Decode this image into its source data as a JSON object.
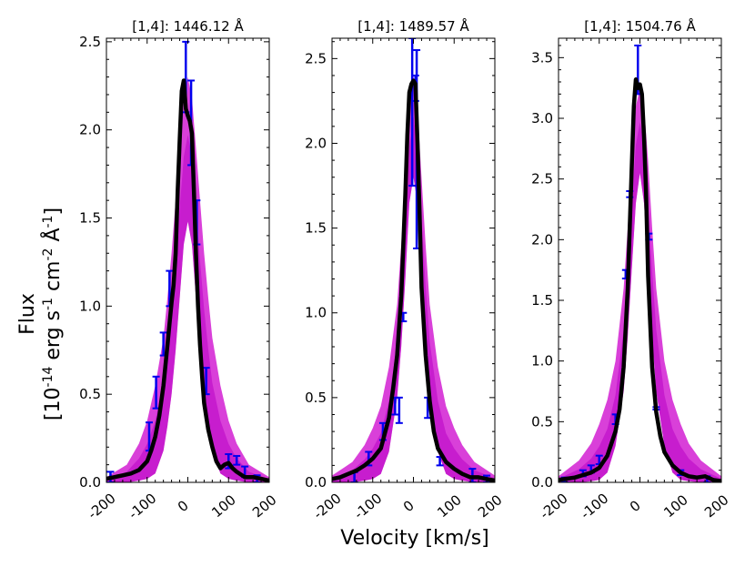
{
  "figure": {
    "xlabel": "Velocity [km/s]",
    "ylabel_line1": "Flux",
    "ylabel_line2_parts": [
      "[10",
      "-14",
      " erg s",
      "-1",
      " cm",
      "-2",
      " Å",
      "-1",
      "]"
    ]
  },
  "colors": {
    "model_band": "#cc00cc",
    "data_line": "#000000",
    "error_bars": "#0000ee"
  },
  "chart_data": [
    {
      "type": "line",
      "title": "[1,4]: 1446.12 Å",
      "xlabel": "Velocity [km/s]",
      "ylabel": "Flux [10^-14 erg s^-1 cm^-2 Å^-1]",
      "xlim": [
        -200,
        200
      ],
      "ylim": [
        0,
        2.52
      ],
      "xticks": [
        -200,
        -100,
        0,
        100,
        200
      ],
      "yticks": [
        0.0,
        0.5,
        1.0,
        1.5,
        2.0,
        2.5
      ],
      "ytick_labels": [
        "0.0",
        "0.5",
        "1.0",
        "1.5",
        "2.0",
        "2.5"
      ],
      "series": [
        {
          "name": "observed",
          "x": [
            -200,
            -180,
            -160,
            -140,
            -120,
            -100,
            -90,
            -80,
            -70,
            -60,
            -50,
            -40,
            -35,
            -30,
            -25,
            -20,
            -15,
            -10,
            -5,
            0,
            5,
            10,
            15,
            20,
            25,
            30,
            35,
            40,
            50,
            60,
            70,
            80,
            90,
            100,
            110,
            120,
            140,
            160,
            180,
            200
          ],
          "y": [
            0.02,
            0.03,
            0.04,
            0.05,
            0.07,
            0.12,
            0.18,
            0.26,
            0.38,
            0.55,
            0.78,
            1.02,
            1.12,
            1.3,
            1.65,
            1.95,
            2.22,
            2.28,
            2.12,
            2.08,
            2.05,
            1.98,
            1.65,
            1.3,
            1.0,
            0.78,
            0.6,
            0.45,
            0.3,
            0.2,
            0.12,
            0.08,
            0.1,
            0.11,
            0.08,
            0.06,
            0.03,
            0.03,
            0.02,
            0.01
          ]
        },
        {
          "name": "model_upper",
          "x": [
            -200,
            -150,
            -120,
            -100,
            -80,
            -60,
            -50,
            -40,
            -30,
            -20,
            -10,
            0,
            10,
            20,
            30,
            40,
            50,
            60,
            80,
            100,
            120,
            150,
            200
          ],
          "y": [
            0.03,
            0.1,
            0.22,
            0.35,
            0.55,
            0.82,
            1.05,
            1.3,
            1.6,
            1.9,
            2.18,
            2.3,
            2.18,
            1.9,
            1.6,
            1.3,
            1.05,
            0.82,
            0.55,
            0.35,
            0.22,
            0.1,
            0.03
          ]
        },
        {
          "name": "model_lower",
          "x": [
            -200,
            -150,
            -120,
            -100,
            -80,
            -60,
            -50,
            -40,
            -30,
            -20,
            -10,
            0,
            10,
            20,
            30,
            40,
            50,
            60,
            80,
            100,
            120,
            150,
            200
          ],
          "y": [
            0.0,
            0.0,
            0.01,
            0.02,
            0.05,
            0.18,
            0.32,
            0.5,
            0.75,
            1.05,
            1.35,
            1.48,
            1.35,
            1.05,
            0.75,
            0.5,
            0.32,
            0.18,
            0.05,
            0.02,
            0.01,
            0.0,
            0.0
          ]
        }
      ],
      "error_bars": [
        {
          "x": -190,
          "lo": 0.0,
          "hi": 0.06
        },
        {
          "x": -95,
          "lo": 0.18,
          "hi": 0.34
        },
        {
          "x": -78,
          "lo": 0.42,
          "hi": 0.6
        },
        {
          "x": -60,
          "lo": 0.72,
          "hi": 0.85
        },
        {
          "x": -45,
          "lo": 1.0,
          "hi": 1.2
        },
        {
          "x": -5,
          "lo": 2.1,
          "hi": 2.5
        },
        {
          "x": 8,
          "lo": 1.8,
          "hi": 2.28
        },
        {
          "x": 22,
          "lo": 1.35,
          "hi": 1.6
        },
        {
          "x": 45,
          "lo": 0.5,
          "hi": 0.65
        },
        {
          "x": 100,
          "lo": 0.08,
          "hi": 0.16
        },
        {
          "x": 120,
          "lo": 0.1,
          "hi": 0.15
        },
        {
          "x": 140,
          "lo": 0.03,
          "hi": 0.09
        },
        {
          "x": 170,
          "lo": 0.0,
          "hi": 0.04
        }
      ]
    },
    {
      "type": "line",
      "title": "[1,4]: 1489.57 Å",
      "xlabel": "Velocity [km/s]",
      "ylabel": "Flux [10^-14 erg s^-1 cm^-2 Å^-1]",
      "xlim": [
        -200,
        200
      ],
      "ylim": [
        0,
        2.62
      ],
      "xticks": [
        -200,
        -100,
        0,
        100,
        200
      ],
      "yticks": [
        0.0,
        0.5,
        1.0,
        1.5,
        2.0,
        2.5
      ],
      "ytick_labels": [
        "0.0",
        "0.5",
        "1.0",
        "1.5",
        "2.0",
        "2.5"
      ],
      "series": [
        {
          "name": "observed",
          "x": [
            -200,
            -180,
            -160,
            -140,
            -120,
            -100,
            -80,
            -60,
            -50,
            -40,
            -30,
            -20,
            -15,
            -10,
            -5,
            0,
            5,
            10,
            15,
            20,
            30,
            40,
            50,
            60,
            80,
            100,
            120,
            140,
            160,
            180,
            200
          ],
          "y": [
            0.02,
            0.03,
            0.05,
            0.07,
            0.1,
            0.14,
            0.2,
            0.38,
            0.55,
            0.75,
            1.1,
            1.7,
            2.05,
            2.3,
            2.35,
            2.37,
            2.35,
            2.0,
            1.6,
            1.15,
            0.75,
            0.48,
            0.3,
            0.2,
            0.12,
            0.08,
            0.05,
            0.03,
            0.03,
            0.02,
            0.01
          ]
        },
        {
          "name": "model_upper",
          "x": [
            -200,
            -150,
            -120,
            -100,
            -80,
            -60,
            -40,
            -30,
            -20,
            -10,
            0,
            10,
            20,
            30,
            40,
            60,
            80,
            100,
            120,
            150,
            200
          ],
          "y": [
            0.04,
            0.12,
            0.22,
            0.32,
            0.45,
            0.68,
            1.05,
            1.4,
            1.8,
            2.2,
            2.4,
            2.2,
            1.8,
            1.4,
            1.05,
            0.68,
            0.45,
            0.32,
            0.22,
            0.12,
            0.04
          ]
        },
        {
          "name": "model_lower",
          "x": [
            -200,
            -150,
            -120,
            -100,
            -80,
            -60,
            -40,
            -30,
            -20,
            -10,
            0,
            10,
            20,
            30,
            40,
            60,
            80,
            100,
            120,
            150,
            200
          ],
          "y": [
            0.0,
            0.0,
            0.01,
            0.02,
            0.05,
            0.18,
            0.5,
            0.8,
            1.2,
            1.65,
            1.8,
            1.65,
            1.2,
            0.8,
            0.5,
            0.18,
            0.05,
            0.02,
            0.01,
            0.0,
            0.0
          ]
        }
      ],
      "error_bars": [
        {
          "x": -145,
          "lo": 0.0,
          "hi": 0.06
        },
        {
          "x": -110,
          "lo": 0.1,
          "hi": 0.18
        },
        {
          "x": -75,
          "lo": 0.25,
          "hi": 0.35
        },
        {
          "x": -45,
          "lo": 0.4,
          "hi": 0.5
        },
        {
          "x": -35,
          "lo": 0.35,
          "hi": 0.5
        },
        {
          "x": -25,
          "lo": 0.95,
          "hi": 1.0
        },
        {
          "x": -3,
          "lo": 1.75,
          "hi": 2.62
        },
        {
          "x": 5,
          "lo": 2.25,
          "hi": 2.4
        },
        {
          "x": 8,
          "lo": 1.38,
          "hi": 2.55
        },
        {
          "x": 35,
          "lo": 0.38,
          "hi": 0.5
        },
        {
          "x": 65,
          "lo": 0.1,
          "hi": 0.15
        },
        {
          "x": 145,
          "lo": 0.0,
          "hi": 0.08
        },
        {
          "x": 180,
          "lo": 0.0,
          "hi": 0.04
        }
      ]
    },
    {
      "type": "line",
      "title": "[1,4]: 1504.76 Å",
      "xlabel": "Velocity [km/s]",
      "ylabel": "Flux [10^-14 erg s^-1 cm^-2 Å^-1]",
      "xlim": [
        -200,
        200
      ],
      "ylim": [
        0,
        3.66
      ],
      "xticks": [
        -200,
        -100,
        0,
        100,
        200
      ],
      "yticks": [
        0.0,
        0.5,
        1.0,
        1.5,
        2.0,
        2.5,
        3.0,
        3.5
      ],
      "ytick_labels": [
        "0.0",
        "0.5",
        "1.0",
        "1.5",
        "2.0",
        "2.5",
        "3.0",
        "3.5"
      ],
      "series": [
        {
          "name": "observed",
          "x": [
            -200,
            -180,
            -160,
            -140,
            -120,
            -100,
            -80,
            -60,
            -50,
            -40,
            -30,
            -20,
            -15,
            -10,
            -5,
            0,
            5,
            10,
            15,
            20,
            30,
            40,
            50,
            60,
            80,
            100,
            120,
            140,
            160,
            180,
            200
          ],
          "y": [
            0.02,
            0.03,
            0.04,
            0.06,
            0.08,
            0.12,
            0.22,
            0.42,
            0.6,
            0.95,
            1.6,
            2.6,
            3.1,
            3.32,
            3.25,
            3.28,
            3.2,
            2.85,
            2.4,
            1.7,
            0.95,
            0.58,
            0.38,
            0.25,
            0.14,
            0.08,
            0.05,
            0.04,
            0.05,
            0.02,
            0.01
          ]
        },
        {
          "name": "model_upper",
          "x": [
            -200,
            -150,
            -120,
            -100,
            -80,
            -60,
            -40,
            -30,
            -20,
            -10,
            0,
            10,
            20,
            30,
            40,
            60,
            80,
            100,
            120,
            150,
            200
          ],
          "y": [
            0.05,
            0.18,
            0.32,
            0.48,
            0.68,
            1.0,
            1.6,
            2.1,
            2.65,
            3.1,
            3.25,
            3.1,
            2.65,
            2.1,
            1.6,
            1.0,
            0.68,
            0.48,
            0.32,
            0.18,
            0.05
          ]
        },
        {
          "name": "model_lower",
          "x": [
            -200,
            -150,
            -120,
            -100,
            -80,
            -60,
            -40,
            -30,
            -20,
            -10,
            0,
            10,
            20,
            30,
            40,
            60,
            80,
            100,
            120,
            150,
            200
          ],
          "y": [
            0.0,
            0.0,
            0.01,
            0.02,
            0.08,
            0.3,
            0.75,
            1.2,
            1.75,
            2.3,
            2.55,
            2.3,
            1.75,
            1.2,
            0.75,
            0.3,
            0.08,
            0.02,
            0.01,
            0.0,
            0.0
          ]
        }
      ],
      "error_bars": [
        {
          "x": -185,
          "lo": 0.0,
          "hi": 0.04
        },
        {
          "x": -140,
          "lo": 0.05,
          "hi": 0.1
        },
        {
          "x": -120,
          "lo": 0.08,
          "hi": 0.14
        },
        {
          "x": -100,
          "lo": 0.15,
          "hi": 0.22
        },
        {
          "x": -60,
          "lo": 0.48,
          "hi": 0.56
        },
        {
          "x": -35,
          "lo": 1.68,
          "hi": 1.75
        },
        {
          "x": -25,
          "lo": 2.35,
          "hi": 2.4
        },
        {
          "x": -5,
          "lo": 3.2,
          "hi": 3.6
        },
        {
          "x": 22,
          "lo": 2.0,
          "hi": 2.05
        },
        {
          "x": 40,
          "lo": 0.6,
          "hi": 0.62
        },
        {
          "x": 100,
          "lo": 0.06,
          "hi": 0.1
        },
        {
          "x": 165,
          "lo": 0.0,
          "hi": 0.05
        }
      ]
    }
  ]
}
